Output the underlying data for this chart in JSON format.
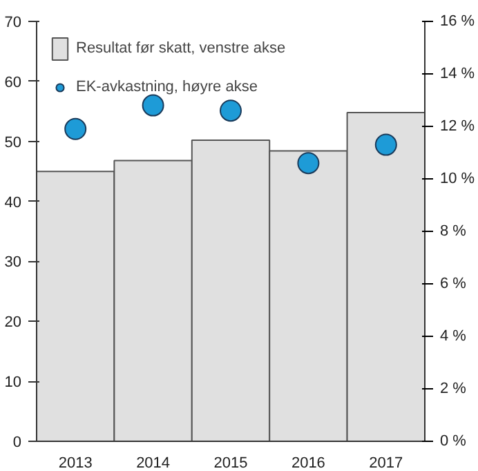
{
  "chart_data": {
    "type": "bar",
    "categories": [
      "2013",
      "2014",
      "2015",
      "2016",
      "2017"
    ],
    "series": [
      {
        "name": "Resultat før skatt, venstre akse",
        "color": "#e0e0e0",
        "values": [
          45.0,
          46.8,
          50.2,
          48.4,
          54.8
        ]
      },
      {
        "name": "EK-avkastning, høyre akse",
        "type": "scatter",
        "axis": "y2",
        "color": "#1e9bd7",
        "values": [
          11.9,
          12.8,
          12.6,
          10.6,
          11.3
        ]
      }
    ],
    "ylim": [
      0,
      70
    ],
    "yticks": [
      0,
      10,
      20,
      30,
      40,
      50,
      60,
      70
    ],
    "y2lim": [
      0,
      16
    ],
    "y2ticks": [
      {
        "value": 0,
        "label": "0 %"
      },
      {
        "value": 2,
        "label": "2 %"
      },
      {
        "value": 4,
        "label": "4 %"
      },
      {
        "value": 6,
        "label": "6 %"
      },
      {
        "value": 8,
        "label": "8 %"
      },
      {
        "value": 10,
        "label": "10 %"
      },
      {
        "value": 12,
        "label": "12 %"
      },
      {
        "value": 14,
        "label": "14 %"
      },
      {
        "value": 16,
        "label": "16 %"
      }
    ],
    "grid": false,
    "legend": "top left",
    "marker": "circle"
  }
}
